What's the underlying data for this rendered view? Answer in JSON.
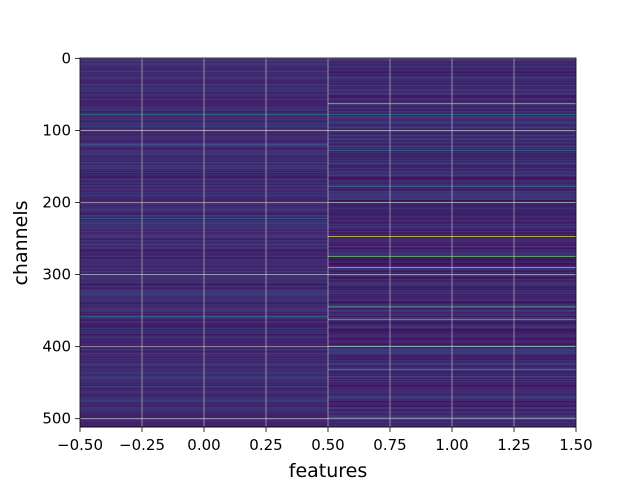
{
  "chart_data": {
    "type": "heatmap",
    "xlabel": "features",
    "ylabel": "channels",
    "x_ticks": [
      "−0.50",
      "−0.25",
      "0.00",
      "0.25",
      "0.50",
      "0.75",
      "1.00",
      "1.25",
      "1.50"
    ],
    "y_ticks": [
      "0",
      "100",
      "200",
      "300",
      "400",
      "500"
    ],
    "xlim": [
      -0.5,
      1.5
    ],
    "ylim": [
      511.5,
      -0.5
    ],
    "columns": [
      0,
      1
    ],
    "rows": 512,
    "colormap": "viridis",
    "grid": true,
    "bright_rows": {
      "column_0": [
        {
          "channel": 78,
          "level": 0.42
        },
        {
          "channel": 120,
          "level": 0.3
        },
        {
          "channel": 145,
          "level": 0.28
        },
        {
          "channel": 222,
          "level": 0.33
        },
        {
          "channel": 358,
          "level": 0.4
        },
        {
          "channel": 455,
          "level": 0.25
        }
      ],
      "column_1": [
        {
          "channel": 63,
          "level": 0.88
        },
        {
          "channel": 78,
          "level": 0.45
        },
        {
          "channel": 128,
          "level": 0.4
        },
        {
          "channel": 178,
          "level": 0.35
        },
        {
          "channel": 200,
          "level": 0.45
        },
        {
          "channel": 247,
          "level": 0.95
        },
        {
          "channel": 275,
          "level": 0.78
        },
        {
          "channel": 290,
          "level": 0.82
        },
        {
          "channel": 345,
          "level": 0.7
        },
        {
          "channel": 362,
          "level": 0.75
        },
        {
          "channel": 400,
          "level": 0.5
        },
        {
          "channel": 432,
          "level": 0.5
        },
        {
          "channel": 470,
          "level": 0.38
        },
        {
          "channel": 498,
          "level": 0.42
        }
      ]
    }
  }
}
